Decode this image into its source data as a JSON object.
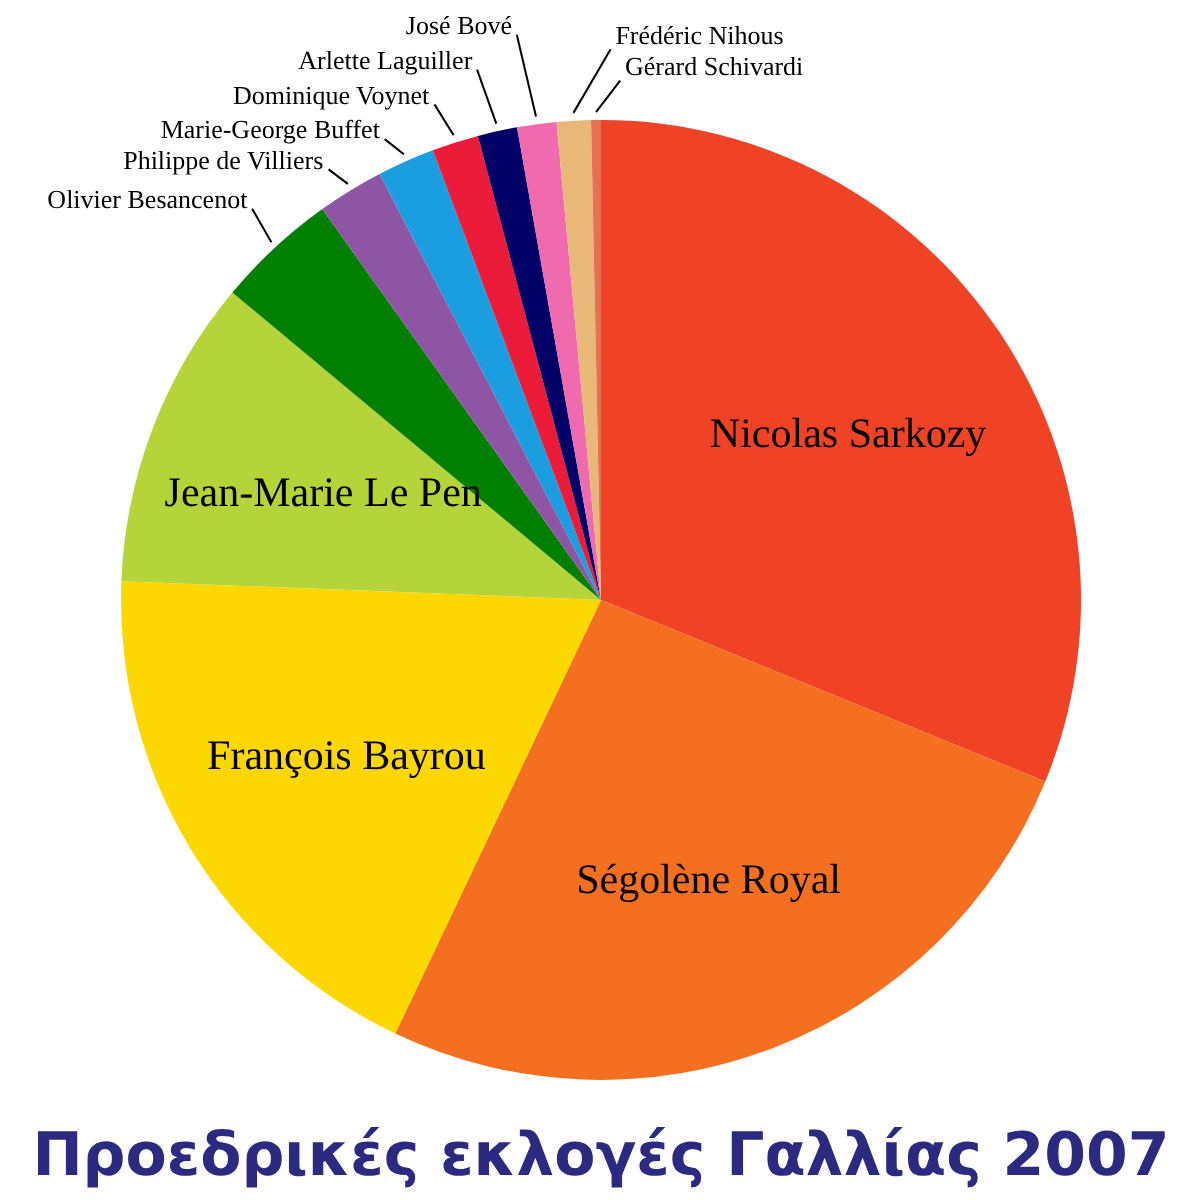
{
  "chart_data": {
    "type": "pie",
    "title": "Προεδρικές εκλογές Γαλλίας 2007",
    "categories": [
      "Nicolas Sarkozy",
      "Ségolène Royal",
      "François Bayrou",
      "Jean-Marie Le Pen",
      "Olivier Besancenot",
      "Philippe de Villiers",
      "Marie-George Buffet",
      "Dominique Voynet",
      "Arlette Laguiller",
      "José Bové",
      "Frédéric Nihous",
      "Gérard Schivardi"
    ],
    "values": [
      31.18,
      25.87,
      18.57,
      10.44,
      4.08,
      2.23,
      1.93,
      1.57,
      1.33,
      1.32,
      1.15,
      0.33
    ],
    "colors": [
      "#f04326",
      "#f47020",
      "#ffd700",
      "#b5d43a",
      "#008000",
      "#8e55a5",
      "#1a9ee0",
      "#ed1b3a",
      "#000066",
      "#f06aae",
      "#e8b878",
      "#e87050"
    ]
  }
}
